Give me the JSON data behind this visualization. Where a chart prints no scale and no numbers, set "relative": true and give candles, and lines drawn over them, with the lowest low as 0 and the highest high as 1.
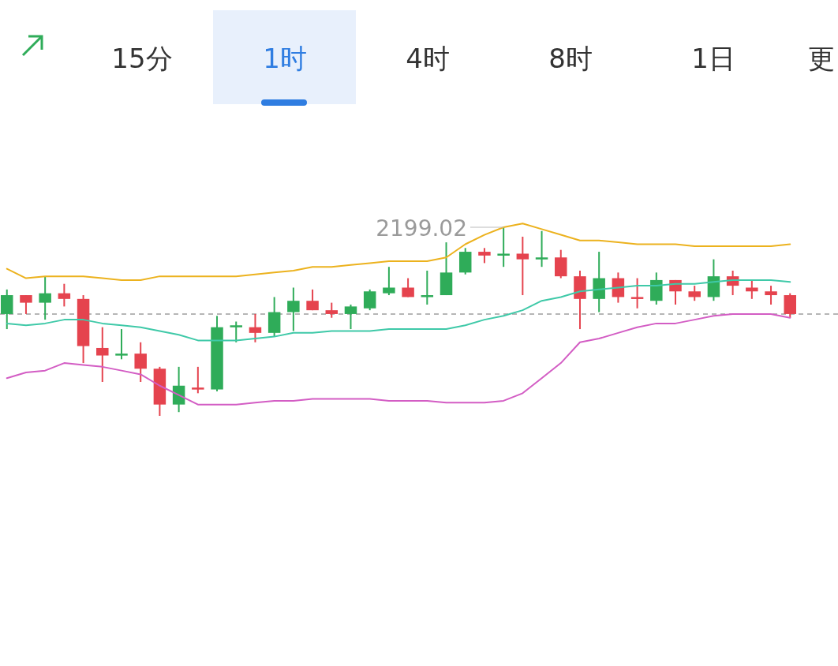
{
  "chart_data": {
    "type": "candlestick",
    "relative": true,
    "categories": [
      null,
      null,
      null,
      null,
      null,
      null,
      null,
      null,
      null,
      null,
      null,
      null,
      null,
      null,
      null,
      null,
      null,
      null,
      null,
      null,
      null,
      null,
      null,
      null,
      null,
      null,
      null,
      null,
      null,
      null,
      null,
      null,
      null,
      null,
      null,
      null,
      null,
      null,
      null,
      null,
      null,
      null
    ],
    "ohlc": [
      [
        0.54,
        0.67,
        0.46,
        0.64
      ],
      [
        0.64,
        0.64,
        0.54,
        0.6
      ],
      [
        0.6,
        0.74,
        0.51,
        0.65
      ],
      [
        0.65,
        0.7,
        0.58,
        0.62
      ],
      [
        0.62,
        0.64,
        0.28,
        0.37
      ],
      [
        0.36,
        0.47,
        0.18,
        0.32
      ],
      [
        0.32,
        0.46,
        0.3,
        0.33
      ],
      [
        0.33,
        0.39,
        0.18,
        0.25
      ],
      [
        0.25,
        0.26,
        0,
        0.06
      ],
      [
        0.06,
        0.26,
        0.02,
        0.16
      ],
      [
        0.15,
        0.26,
        0.12,
        0.14
      ],
      [
        0.14,
        0.53,
        0.13,
        0.47
      ],
      [
        0.47,
        0.5,
        0.39,
        0.48
      ],
      [
        0.47,
        0.54,
        0.39,
        0.44
      ],
      [
        0.44,
        0.63,
        0.42,
        0.55
      ],
      [
        0.55,
        0.68,
        0.45,
        0.61
      ],
      [
        0.61,
        0.67,
        0.56,
        0.56
      ],
      [
        0.56,
        0.6,
        0.52,
        0.54
      ],
      [
        0.54,
        0.59,
        0.46,
        0.58
      ],
      [
        0.57,
        0.67,
        0.56,
        0.66
      ],
      [
        0.65,
        0.79,
        0.64,
        0.68
      ],
      [
        0.68,
        0.73,
        0.63,
        0.63
      ],
      [
        0.63,
        0.77,
        0.59,
        0.64
      ],
      [
        0.64,
        0.92,
        0.64,
        0.76
      ],
      [
        0.76,
        0.89,
        0.75,
        0.87
      ],
      [
        0.87,
        0.89,
        0.81,
        0.85
      ],
      [
        0.85,
        1,
        0.79,
        0.86
      ],
      [
        0.86,
        0.95,
        0.64,
        0.83
      ],
      [
        0.83,
        0.98,
        0.79,
        0.84
      ],
      [
        0.84,
        0.88,
        0.73,
        0.74
      ],
      [
        0.74,
        0.77,
        0.46,
        0.62
      ],
      [
        0.62,
        0.87,
        0.55,
        0.73
      ],
      [
        0.73,
        0.76,
        0.6,
        0.63
      ],
      [
        0.63,
        0.73,
        0.57,
        0.62
      ],
      [
        0.61,
        0.76,
        0.59,
        0.72
      ],
      [
        0.72,
        0.72,
        0.59,
        0.66
      ],
      [
        0.66,
        0.69,
        0.61,
        0.63
      ],
      [
        0.63,
        0.83,
        0.61,
        0.74
      ],
      [
        0.74,
        0.77,
        0.64,
        0.69
      ],
      [
        0.68,
        0.72,
        0.62,
        0.66
      ],
      [
        0.66,
        0.69,
        0.59,
        0.64
      ],
      [
        0.64,
        0.65,
        0.52,
        0.54
      ]
    ],
    "colors": [
      "#2fac59",
      "#e5434e",
      "#2fac59",
      "#e5434e",
      "#e5434e",
      "#e5434e",
      "#2fac59",
      "#e5434e",
      "#e5434e",
      "#2fac59",
      "#e5434e",
      "#2fac59",
      "#2fac59",
      "#e5434e",
      "#2fac59",
      "#2fac59",
      "#e5434e",
      "#e5434e",
      "#2fac59",
      "#2fac59",
      "#2fac59",
      "#e5434e",
      "#2fac59",
      "#2fac59",
      "#2fac59",
      "#e5434e",
      "#2fac59",
      "#e5434e",
      "#2fac59",
      "#e5434e",
      "#e5434e",
      "#2fac59",
      "#e5434e",
      "#e5434e",
      "#2fac59",
      "#e5434e",
      "#e5434e",
      "#2fac59",
      "#e5434e",
      "#e5434e",
      "#e5434e",
      "#e5434e"
    ],
    "series": [
      {
        "type": "line",
        "color": "#ecb21e",
        "values": [
          0.78,
          0.73,
          0.74,
          0.74,
          0.74,
          0.73,
          0.72,
          0.72,
          0.74,
          0.74,
          0.74,
          0.74,
          0.74,
          0.75,
          0.76,
          0.77,
          0.79,
          0.79,
          0.8,
          0.81,
          0.82,
          0.82,
          0.82,
          0.84,
          0.91,
          0.96,
          1.0,
          1.02,
          0.99,
          0.96,
          0.93,
          0.93,
          0.92,
          0.91,
          0.91,
          0.91,
          0.9,
          0.9,
          0.9,
          0.9,
          0.9,
          0.91
        ]
      },
      {
        "type": "line",
        "color": "#3fc9a8",
        "values": [
          0.49,
          0.48,
          0.49,
          0.51,
          0.51,
          0.49,
          0.48,
          0.47,
          0.45,
          0.43,
          0.4,
          0.4,
          0.4,
          0.41,
          0.42,
          0.44,
          0.44,
          0.45,
          0.45,
          0.45,
          0.46,
          0.46,
          0.46,
          0.46,
          0.48,
          0.51,
          0.53,
          0.56,
          0.61,
          0.63,
          0.66,
          0.67,
          0.68,
          0.69,
          0.69,
          0.7,
          0.7,
          0.71,
          0.72,
          0.72,
          0.72,
          0.71
        ]
      },
      {
        "type": "line",
        "color": "#d35dc4",
        "values": [
          0.2,
          0.23,
          0.24,
          0.28,
          0.27,
          0.26,
          0.24,
          0.22,
          0.16,
          0.11,
          0.06,
          0.06,
          0.06,
          0.07,
          0.08,
          0.08,
          0.09,
          0.09,
          0.09,
          0.09,
          0.08,
          0.08,
          0.08,
          0.07,
          0.07,
          0.07,
          0.08,
          0.12,
          0.2,
          0.28,
          0.39,
          0.41,
          0.44,
          0.47,
          0.49,
          0.49,
          0.51,
          0.53,
          0.54,
          0.54,
          0.54,
          0.52
        ]
      }
    ],
    "ref_lines": [
      {
        "axis": "y",
        "value": 0.54,
        "color": "#9e9e9e",
        "line_style": "dashed"
      }
    ],
    "annotations": [
      "15分",
      "1时",
      "4时",
      "8时",
      "1日",
      "更",
      "2199.02"
    ]
  }
}
